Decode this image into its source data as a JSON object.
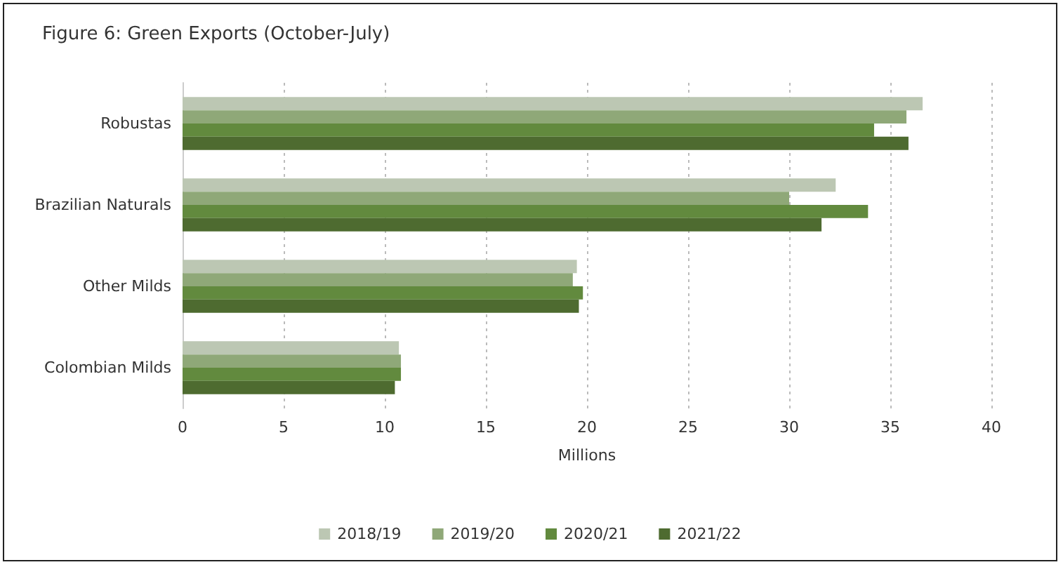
{
  "chart_data": {
    "type": "bar",
    "orientation": "horizontal",
    "title": "Figure 6: Green Exports (October-July)",
    "xlabel": "Millions",
    "categories": [
      "Robustas",
      "Brazilian Naturals",
      "Other Milds",
      "Colombian Milds"
    ],
    "series": [
      {
        "name": "2018/19",
        "color": "#bcc7b3",
        "values": [
          36.6,
          32.3,
          19.5,
          10.7
        ]
      },
      {
        "name": "2019/20",
        "color": "#8fa878",
        "values": [
          35.8,
          30.0,
          19.3,
          10.8
        ]
      },
      {
        "name": "2020/21",
        "color": "#628a3e",
        "values": [
          34.2,
          33.9,
          19.8,
          10.8
        ]
      },
      {
        "name": "2021/22",
        "color": "#4e6b30",
        "values": [
          35.9,
          31.6,
          19.6,
          10.5
        ]
      }
    ],
    "xlim": [
      0,
      40
    ],
    "xticks": [
      0,
      5,
      10,
      15,
      20,
      25,
      30,
      35,
      40
    ],
    "grid": "x",
    "legend": "bottom"
  }
}
